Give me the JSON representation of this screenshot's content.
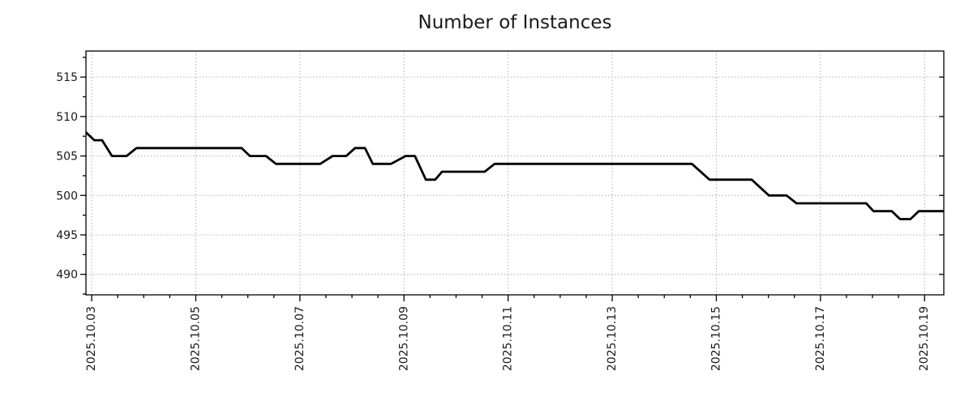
{
  "page": {
    "background": "#ffffff",
    "text_color": "#1a1a1a"
  },
  "chart_data": {
    "type": "line",
    "title": "Number of Instances",
    "grid": {
      "visible": true,
      "style": "dotted",
      "color": "#b0b0b0",
      "on": "major"
    },
    "spine_color": "#000000",
    "x_axis": {
      "unit": "days since 2025-10-03 00:00",
      "lim": [
        -0.11,
        16.37
      ],
      "major_tick_positions": [
        0,
        2,
        4,
        6,
        8,
        10,
        12,
        14,
        16
      ],
      "major_tick_labels": [
        "2025.10.03",
        "2025.10.05",
        "2025.10.07",
        "2025.10.09",
        "2025.10.11",
        "2025.10.13",
        "2025.10.15",
        "2025.10.17",
        "2025.10.19"
      ],
      "minor_tick_interval": 0.5,
      "tick_label_rotation_deg": 90
    },
    "y_axis": {
      "lim": [
        487.4,
        518.3
      ],
      "major_tick_positions": [
        490,
        495,
        500,
        505,
        510,
        515
      ],
      "major_tick_labels": [
        "490",
        "495",
        "500",
        "505",
        "510",
        "515"
      ],
      "minor_tick_interval": 2.5
    },
    "series": [
      {
        "name": "instances",
        "color": "#000000",
        "line_width": 2.8,
        "x": [
          -0.11,
          0.05,
          0.2,
          0.39,
          0.67,
          0.86,
          2.88,
          3.04,
          3.35,
          3.54,
          4.39,
          4.63,
          4.89,
          5.06,
          5.25,
          5.4,
          5.75,
          6.03,
          6.21,
          6.42,
          6.6,
          6.73,
          7.55,
          7.74,
          11.53,
          11.87,
          12.68,
          13.01,
          13.35,
          13.54,
          14.88,
          15.02,
          15.37,
          15.53,
          15.73,
          15.89,
          16.37
        ],
        "values": [
          508,
          507,
          507,
          505,
          505,
          506,
          506,
          505,
          505,
          504,
          504,
          505,
          505,
          506,
          506,
          504,
          504,
          505,
          505,
          502,
          502,
          503,
          503,
          504,
          504,
          502,
          502,
          500,
          500,
          499,
          499,
          498,
          498,
          497,
          497,
          498,
          498
        ]
      }
    ]
  }
}
